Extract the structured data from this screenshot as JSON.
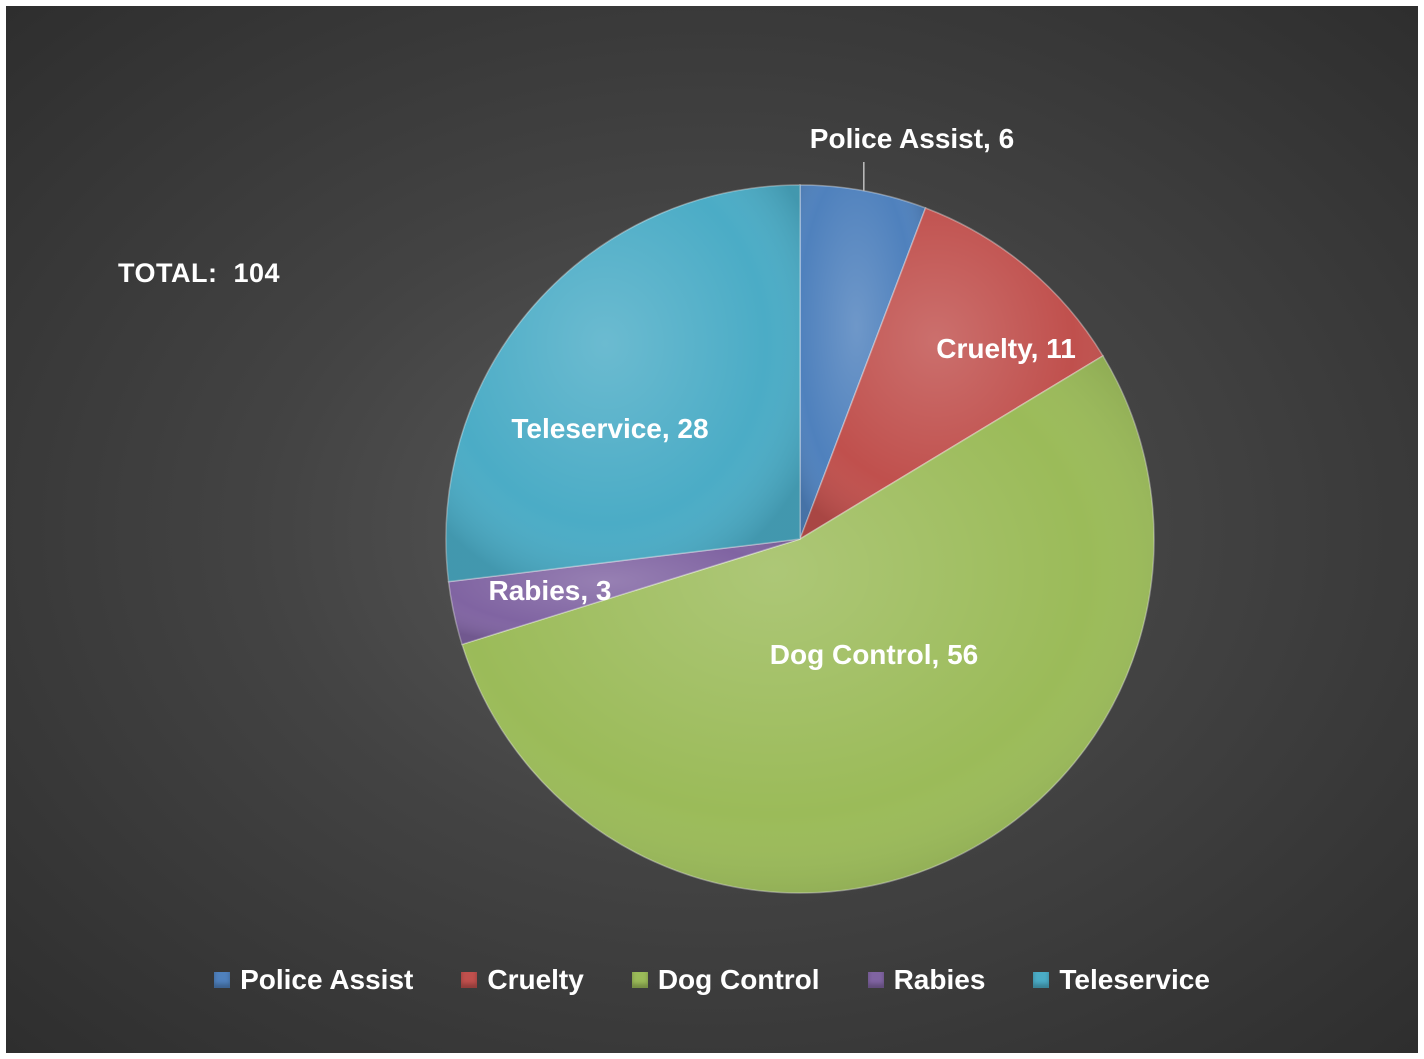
{
  "chart_data": {
    "type": "pie",
    "categories": [
      "Police Assist",
      "Cruelty",
      "Dog Control",
      "Rabies",
      "Teleservice"
    ],
    "values": [
      6,
      11,
      56,
      3,
      28
    ],
    "data_labels": [
      "Police Assist,  6",
      "Cruelty,  11",
      "Dog Control,  56",
      "Rabies,  3",
      "Teleservice,  28"
    ],
    "colors": [
      "#4f81bd",
      "#c0504d",
      "#9bbb59",
      "#8064a2",
      "#4bacc6"
    ],
    "annotation": "TOTAL:  104",
    "legend_position": "bottom",
    "start_angle": "12 o'clock, clockwise"
  }
}
